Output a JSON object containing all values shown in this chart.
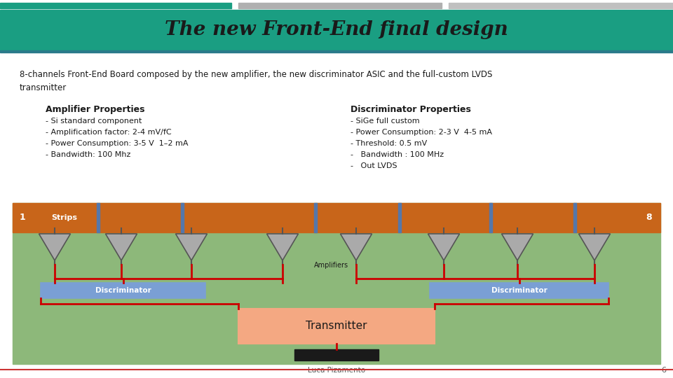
{
  "title": "The new Front-End final design",
  "title_bg": "#1a9e82",
  "title_color": "#1a1a1a",
  "body_bg": "#ffffff",
  "description": "8-channels Front-End Board composed by the new amplifier, the new discriminator ASIC and the full-custom LVDS\ntransmitter",
  "amp_title": "Amplifier Properties",
  "amp_props": [
    "- Si standard component",
    "- Amplification factor: 2-4 mV/fC",
    "- Power Consumption: 3-5 V  1–2 mA",
    "- Bandwidth: 100 Mhz"
  ],
  "disc_title": "Discriminator Properties",
  "disc_props": [
    "- SiGe full custom",
    "- Power Consumption: 2-3 V  4-5 mA",
    "- Threshold: 0.5 mV",
    "-   Bandwidth : 100 MHz",
    "-   Out LVDS"
  ],
  "footer": "Luca Pizamento",
  "page_num": "6",
  "diagram_bg": "#8db87a",
  "strip_bg": "#c8651a",
  "strip_text": "Strips",
  "strip_num1": "1",
  "strip_num8": "8",
  "disc_box_color": "#7a9fd4",
  "transmitter_color": "#f4a882",
  "red_line": "#cc0000",
  "black_box": "#1a1a1a",
  "arrow_color": "#808080"
}
